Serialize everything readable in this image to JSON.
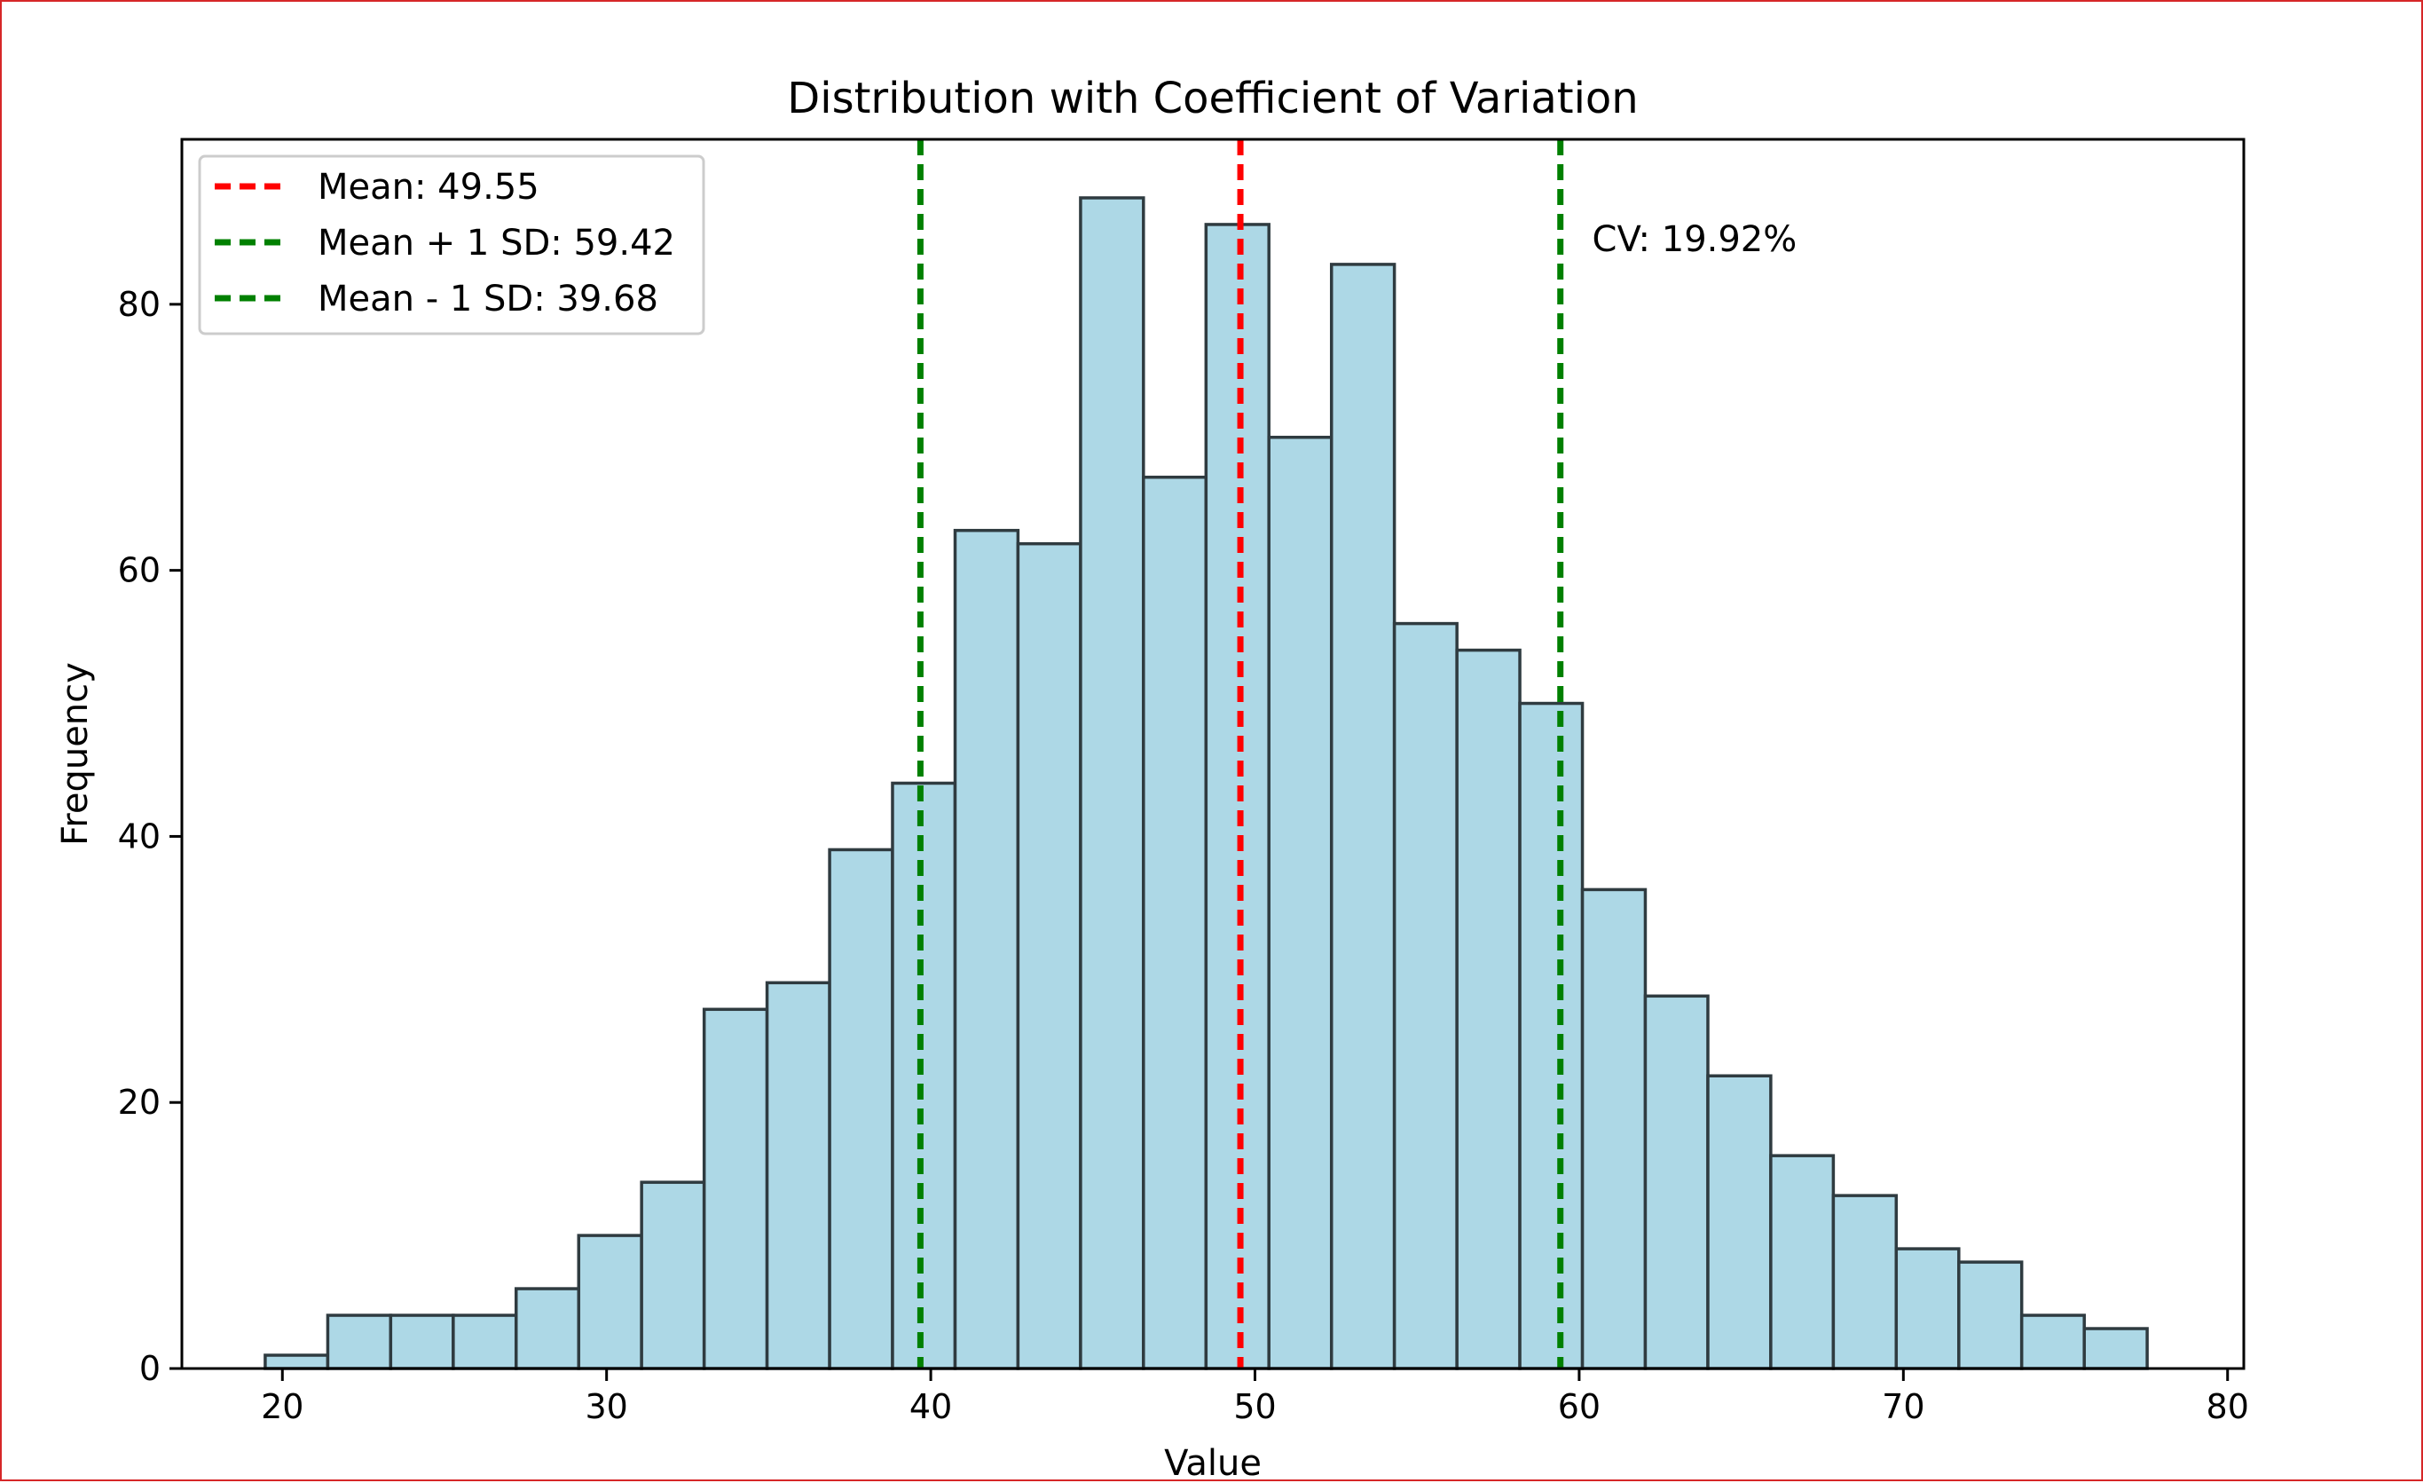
{
  "chart_data": {
    "type": "bar",
    "title": "Distribution with Coefficient of Variation",
    "xlabel": "Value",
    "ylabel": "Frequency",
    "xlim": [
      16.9,
      80.5
    ],
    "ylim": [
      0,
      92.4
    ],
    "xticks": [
      20,
      30,
      40,
      50,
      60,
      70,
      80
    ],
    "yticks": [
      0,
      20,
      40,
      60,
      80
    ],
    "grid": false,
    "legend_position": "upper left",
    "bin_edges": [
      19.47,
      21.4,
      23.34,
      25.27,
      27.21,
      29.14,
      31.08,
      33.01,
      34.95,
      36.88,
      38.82,
      40.75,
      42.69,
      44.62,
      46.56,
      48.49,
      50.43,
      52.36,
      54.3,
      56.23,
      58.17,
      60.1,
      62.04,
      63.97,
      65.91,
      67.84,
      69.78,
      71.71,
      73.65,
      75.58,
      77.52
    ],
    "counts": [
      1,
      4,
      4,
      4,
      6,
      10,
      14,
      27,
      29,
      39,
      44,
      63,
      62,
      88,
      67,
      86,
      70,
      83,
      56,
      54,
      50,
      36,
      28,
      22,
      16,
      13,
      9,
      8,
      4,
      3
    ],
    "bar_fill": "#add8e6",
    "bar_edge": "#2f3b40",
    "reference_lines": [
      {
        "label": "Mean: 49.55",
        "x": 49.55,
        "color": "#ff0000",
        "style": "dashed"
      },
      {
        "label": "Mean + 1 SD: 59.42",
        "x": 59.42,
        "color": "#008000",
        "style": "dashed"
      },
      {
        "label": "Mean - 1 SD: 39.68",
        "x": 39.68,
        "color": "#008000",
        "style": "dashed"
      }
    ],
    "annotations": [
      {
        "text": "CV: 19.92%",
        "x": 60.4,
        "y": 84
      }
    ]
  }
}
